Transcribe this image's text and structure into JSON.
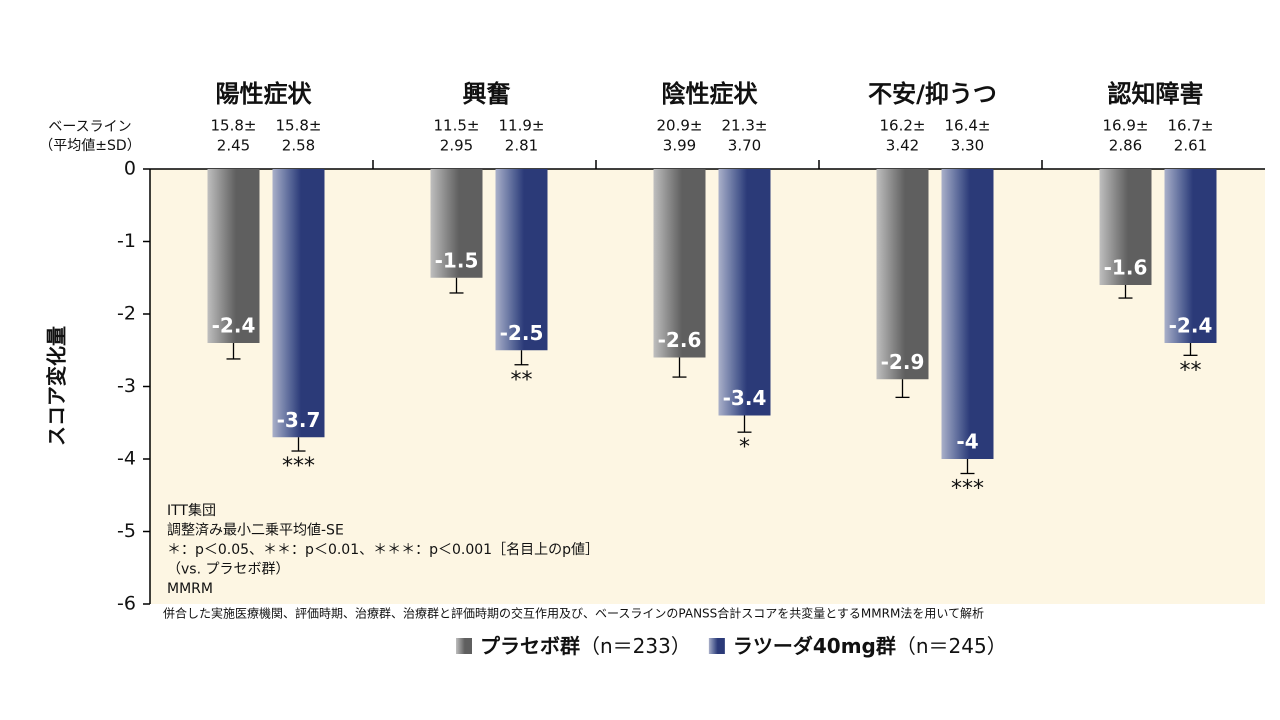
{
  "chart_data": {
    "type": "bar",
    "categories": [
      "陽性症状",
      "興奮",
      "陰性症状",
      "不安/抑うつ",
      "認知障害"
    ],
    "baseline_title": [
      "ベースライン",
      "（平均値±SD）"
    ],
    "ylabel": "スコア変化量",
    "ylim": [
      -6,
      0
    ],
    "yticks": [
      0,
      -1,
      -2,
      -3,
      -4,
      -5,
      -6
    ],
    "series": [
      {
        "name": "プラセボ群",
        "n_label": "（n＝233）",
        "color": "#5f5f5f",
        "values": [
          -2.4,
          -1.5,
          -2.6,
          -2.9,
          -1.6
        ],
        "errors": [
          0.22,
          0.21,
          0.27,
          0.25,
          0.18
        ],
        "baseline": [
          [
            "15.8±",
            "2.45"
          ],
          [
            "11.5±",
            "2.95"
          ],
          [
            "20.9±",
            "3.99"
          ],
          [
            "16.2±",
            "3.42"
          ],
          [
            "16.9±",
            "2.86"
          ]
        ]
      },
      {
        "name": "ラツーダ40mg群",
        "n_label": "（n＝245）",
        "color": "#2b3a78",
        "values": [
          -3.7,
          -2.5,
          -3.4,
          -4.0,
          -2.4
        ],
        "errors": [
          0.19,
          0.2,
          0.23,
          0.2,
          0.17
        ],
        "significance": [
          "***",
          "**",
          "*",
          "***",
          "**"
        ],
        "baseline": [
          [
            "15.8±",
            "2.58"
          ],
          [
            "11.9±",
            "2.81"
          ],
          [
            "21.3±",
            "3.70"
          ],
          [
            "16.4±",
            "3.30"
          ],
          [
            "16.7±",
            "2.61"
          ]
        ]
      }
    ],
    "notes": [
      "ITT集団",
      "調整済み最小二乗平均値-SE",
      "＊：p＜0.05、＊＊：p＜0.01、＊＊＊：p＜0.001［名目上のp値］",
      "（vs. プラセボ群）",
      "MMRM"
    ],
    "footnote": "併合した実施医療機関、評価時期、治療群、治療群と評価時期の交互作用及び、ベースラインのPANSS合計スコアを共変量とするMMRM法を用いて解析"
  }
}
